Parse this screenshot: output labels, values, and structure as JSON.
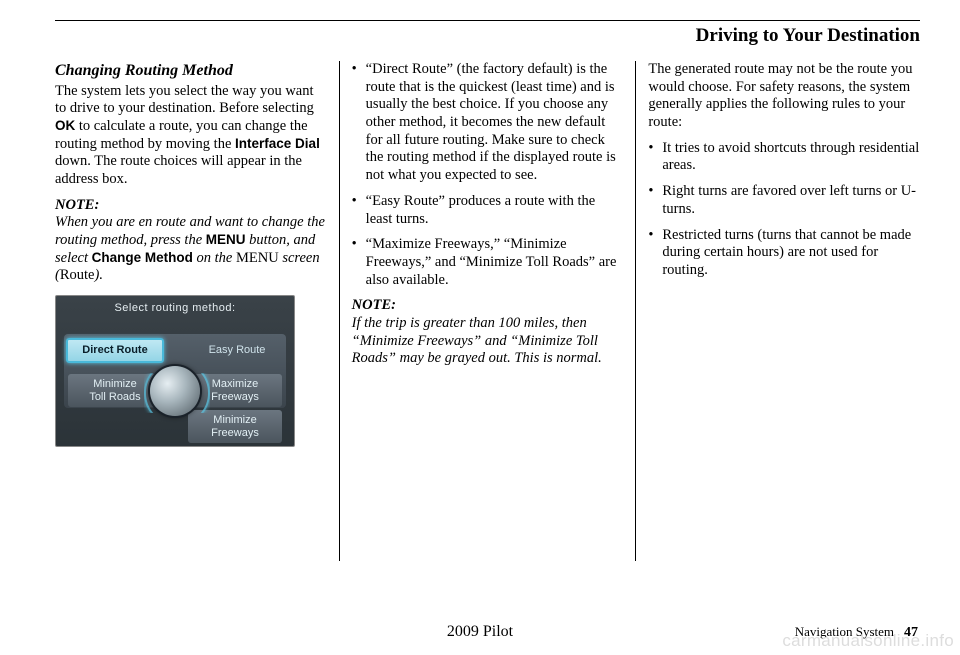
{
  "header": {
    "title": "Driving to Your Destination"
  },
  "col1": {
    "subhead": "Changing Routing Method",
    "para1_a": "The system lets you select the way you want to drive to your destination. Before selecting ",
    "para1_ok": "OK",
    "para1_b": " to calculate a route, you can change the routing method by moving the ",
    "para1_dial": "Interface Dial",
    "para1_c": " down. The route choices will appear in the address box.",
    "note_label": "NOTE:",
    "note_a": "When you are en route and want to change the routing method, press the ",
    "note_menu_btn": "MENU",
    "note_b": " button, and select ",
    "note_change": "Change Method",
    "note_c": " on the ",
    "note_menu_scr": "MENU",
    "note_d": " screen (",
    "note_route": "Route",
    "note_e": ").",
    "fig": {
      "title": "Select routing method:",
      "direct": "Direct Route",
      "easy": "Easy Route",
      "min_toll": "Minimize\nToll Roads",
      "max_fwy": "Maximize\nFreeways",
      "min_fwy": "Minimize\nFreeways"
    }
  },
  "col2": {
    "b1": "“Direct Route” (the factory default) is the route that is the quickest (least time) and is usually the best choice. If you choose any other method, it becomes the new default for all future routing. Make sure to check the routing method if the displayed route is not what you expected to see.",
    "b2": "“Easy Route” produces a route with the least turns.",
    "b3": "“Maximize Freeways,” “Minimize Freeways,” and “Minimize Toll Roads” are also available.",
    "note_label": "NOTE:",
    "note": "If the trip is greater than 100 miles, then “Minimize Freeways” and “Minimize Toll Roads” may be grayed out. This is normal."
  },
  "col3": {
    "intro": "The generated route may not be the route you would choose. For safety reasons, the system generally applies the following rules to your route:",
    "b1": "It tries to avoid shortcuts through residential areas.",
    "b2": "Right turns are favored over left turns or U-turns.",
    "b3": "Restricted turns (turns that cannot be made during certain hours) are not used for routing."
  },
  "footer": {
    "year": "2009  Pilot",
    "section": "Navigation System",
    "page": "47"
  },
  "watermark": "carmanualsonline.info"
}
